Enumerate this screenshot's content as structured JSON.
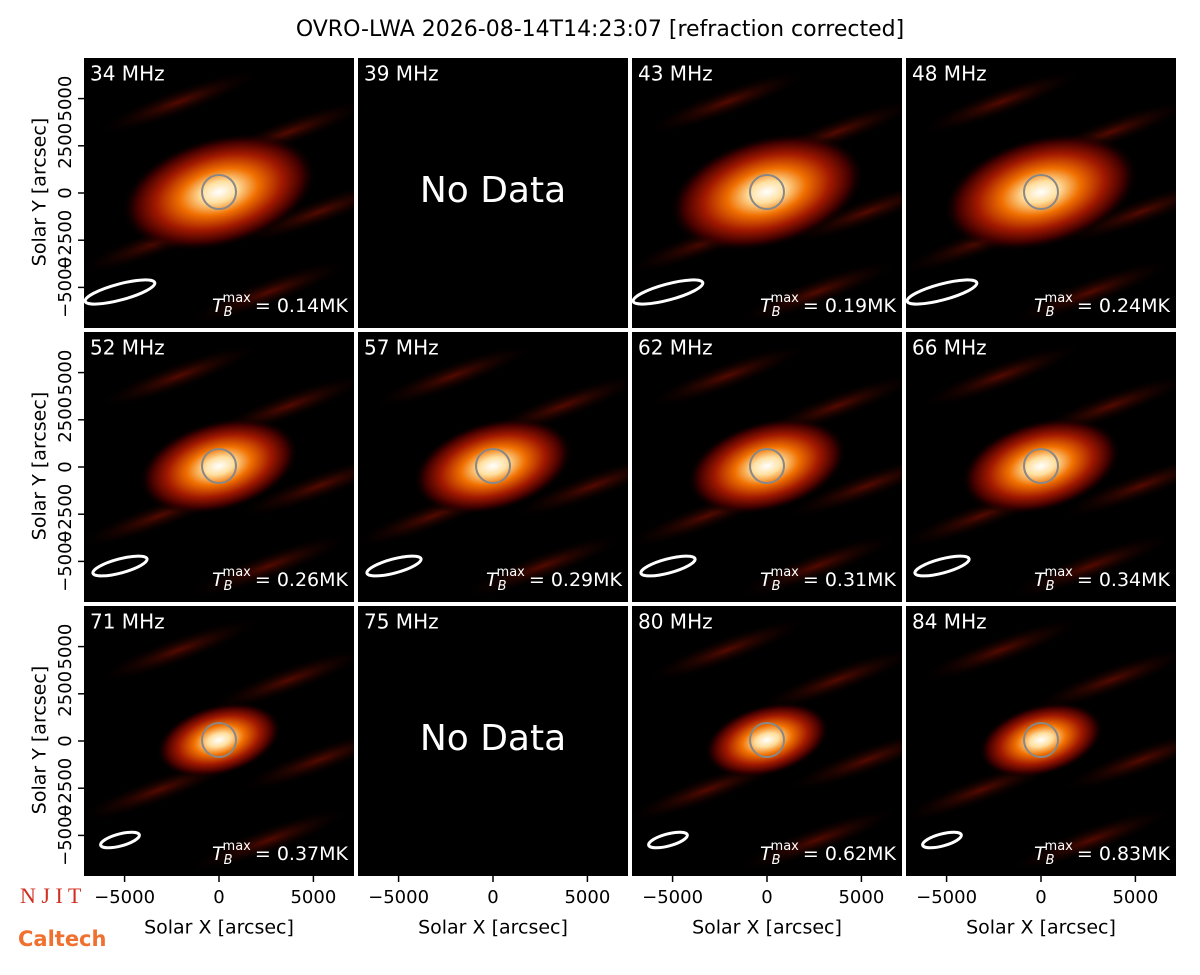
{
  "title": "OVRO-LWA 2026-08-14T14:23:07 [refraction corrected]",
  "tb_symbol": {
    "base": "T",
    "sub": "B",
    "sup": "max"
  },
  "logos": [
    "N J I T",
    "Caltech"
  ],
  "chart_data": [
    {
      "type": "image",
      "label": "34 MHz",
      "annotation": "= 0.14MK",
      "ylabel": "Solar Y [arcsec]",
      "xlim": [
        -7150,
        7150
      ],
      "ylim": [
        -7150,
        7150
      ],
      "yticks": [
        {
          "value": -5000,
          "label": "−5000"
        },
        {
          "value": -2500,
          "label": "−2500"
        },
        0,
        2500,
        5000
      ]
    },
    {
      "type": "image",
      "label": "39 MHz",
      "message": "No Data",
      "xlim": [
        -7150,
        7150
      ],
      "ylim": [
        -7150,
        7150
      ]
    },
    {
      "type": "image",
      "label": "43 MHz",
      "annotation": "= 0.19MK",
      "xlim": [
        -7150,
        7150
      ],
      "ylim": [
        -7150,
        7150
      ]
    },
    {
      "type": "image",
      "label": "48 MHz",
      "annotation": "= 0.24MK",
      "xlim": [
        -7150,
        7150
      ],
      "ylim": [
        -7150,
        7150
      ]
    },
    {
      "type": "image",
      "label": "52 MHz",
      "annotation": "= 0.26MK",
      "ylabel": "Solar Y [arcsec]",
      "xlim": [
        -7150,
        7150
      ],
      "ylim": [
        -7150,
        7150
      ],
      "yticks": [
        {
          "value": -5000,
          "label": "−5000"
        },
        {
          "value": -2500,
          "label": "−2500"
        },
        0,
        2500,
        5000
      ]
    },
    {
      "type": "image",
      "label": "57 MHz",
      "annotation": "= 0.29MK",
      "xlim": [
        -7150,
        7150
      ],
      "ylim": [
        -7150,
        7150
      ]
    },
    {
      "type": "image",
      "label": "62 MHz",
      "annotation": "= 0.31MK",
      "xlim": [
        -7150,
        7150
      ],
      "ylim": [
        -7150,
        7150
      ]
    },
    {
      "type": "image",
      "label": "66 MHz",
      "annotation": "= 0.34MK",
      "xlim": [
        -7150,
        7150
      ],
      "ylim": [
        -7150,
        7150
      ]
    },
    {
      "type": "image",
      "label": "71 MHz",
      "annotation": "= 0.37MK",
      "ylabel": "Solar Y [arcsec]",
      "xlabel": "Solar X [arcsec]",
      "xlim": [
        -7150,
        7150
      ],
      "ylim": [
        -7150,
        7150
      ],
      "yticks": [
        {
          "value": -5000,
          "label": "−5000"
        },
        {
          "value": -2500,
          "label": "−2500"
        },
        0,
        2500,
        5000
      ],
      "xticks": [
        {
          "value": -5000,
          "label": "−5000"
        },
        0,
        5000
      ]
    },
    {
      "type": "image",
      "label": "75 MHz",
      "message": "No Data",
      "xlabel": "Solar X [arcsec]",
      "xlim": [
        -7150,
        7150
      ],
      "ylim": [
        -7150,
        7150
      ],
      "xticks": [
        {
          "value": -5000,
          "label": "−5000"
        },
        0,
        5000
      ]
    },
    {
      "type": "image",
      "label": "80 MHz",
      "annotation": "= 0.62MK",
      "xlabel": "Solar X [arcsec]",
      "xlim": [
        -7150,
        7150
      ],
      "ylim": [
        -7150,
        7150
      ],
      "xticks": [
        {
          "value": -5000,
          "label": "−5000"
        },
        0,
        5000
      ]
    },
    {
      "type": "image",
      "label": "84 MHz",
      "annotation": "= 0.83MK",
      "xlabel": "Solar X [arcsec]",
      "xlim": [
        -7150,
        7150
      ],
      "ylim": [
        -7150,
        7150
      ],
      "xticks": [
        {
          "value": -5000,
          "label": "−5000"
        },
        0,
        5000
      ]
    }
  ]
}
